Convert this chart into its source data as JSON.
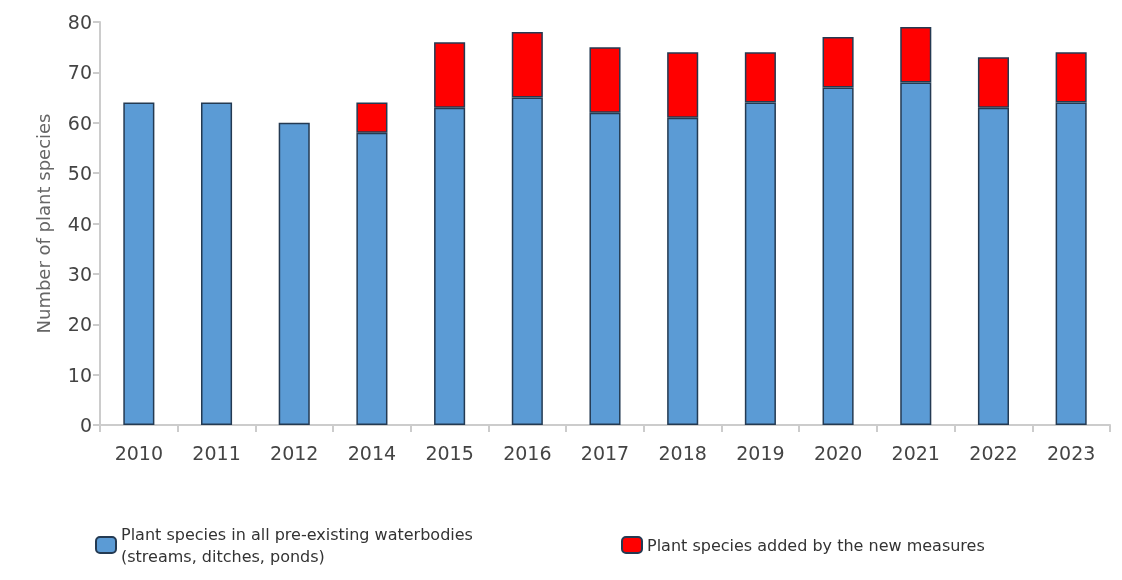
{
  "chart_data": {
    "type": "bar",
    "stacked": true,
    "ylabel": "Number of plant species",
    "categories": [
      "2010",
      "2011",
      "2012",
      "2014",
      "2015",
      "2016",
      "2017",
      "2018",
      "2019",
      "2020",
      "2021",
      "2022",
      "2023"
    ],
    "series": [
      {
        "name": "Plant species in all pre-existing waterbodies (streams, ditches, ponds)",
        "color": "#5b9bd5",
        "values": [
          64,
          64,
          60,
          58,
          63,
          65,
          62,
          61,
          64,
          67,
          68,
          63,
          64
        ]
      },
      {
        "name": "Plant species added by the new measures",
        "color": "#ff0000",
        "values": [
          null,
          null,
          null,
          6,
          13,
          13,
          13,
          13,
          10,
          10,
          11,
          10,
          10
        ]
      }
    ],
    "ylim": [
      0,
      80
    ],
    "yticks": [
      0,
      10,
      20,
      30,
      40,
      50,
      60,
      70,
      80
    ],
    "grid": false,
    "legend": "bottom"
  }
}
